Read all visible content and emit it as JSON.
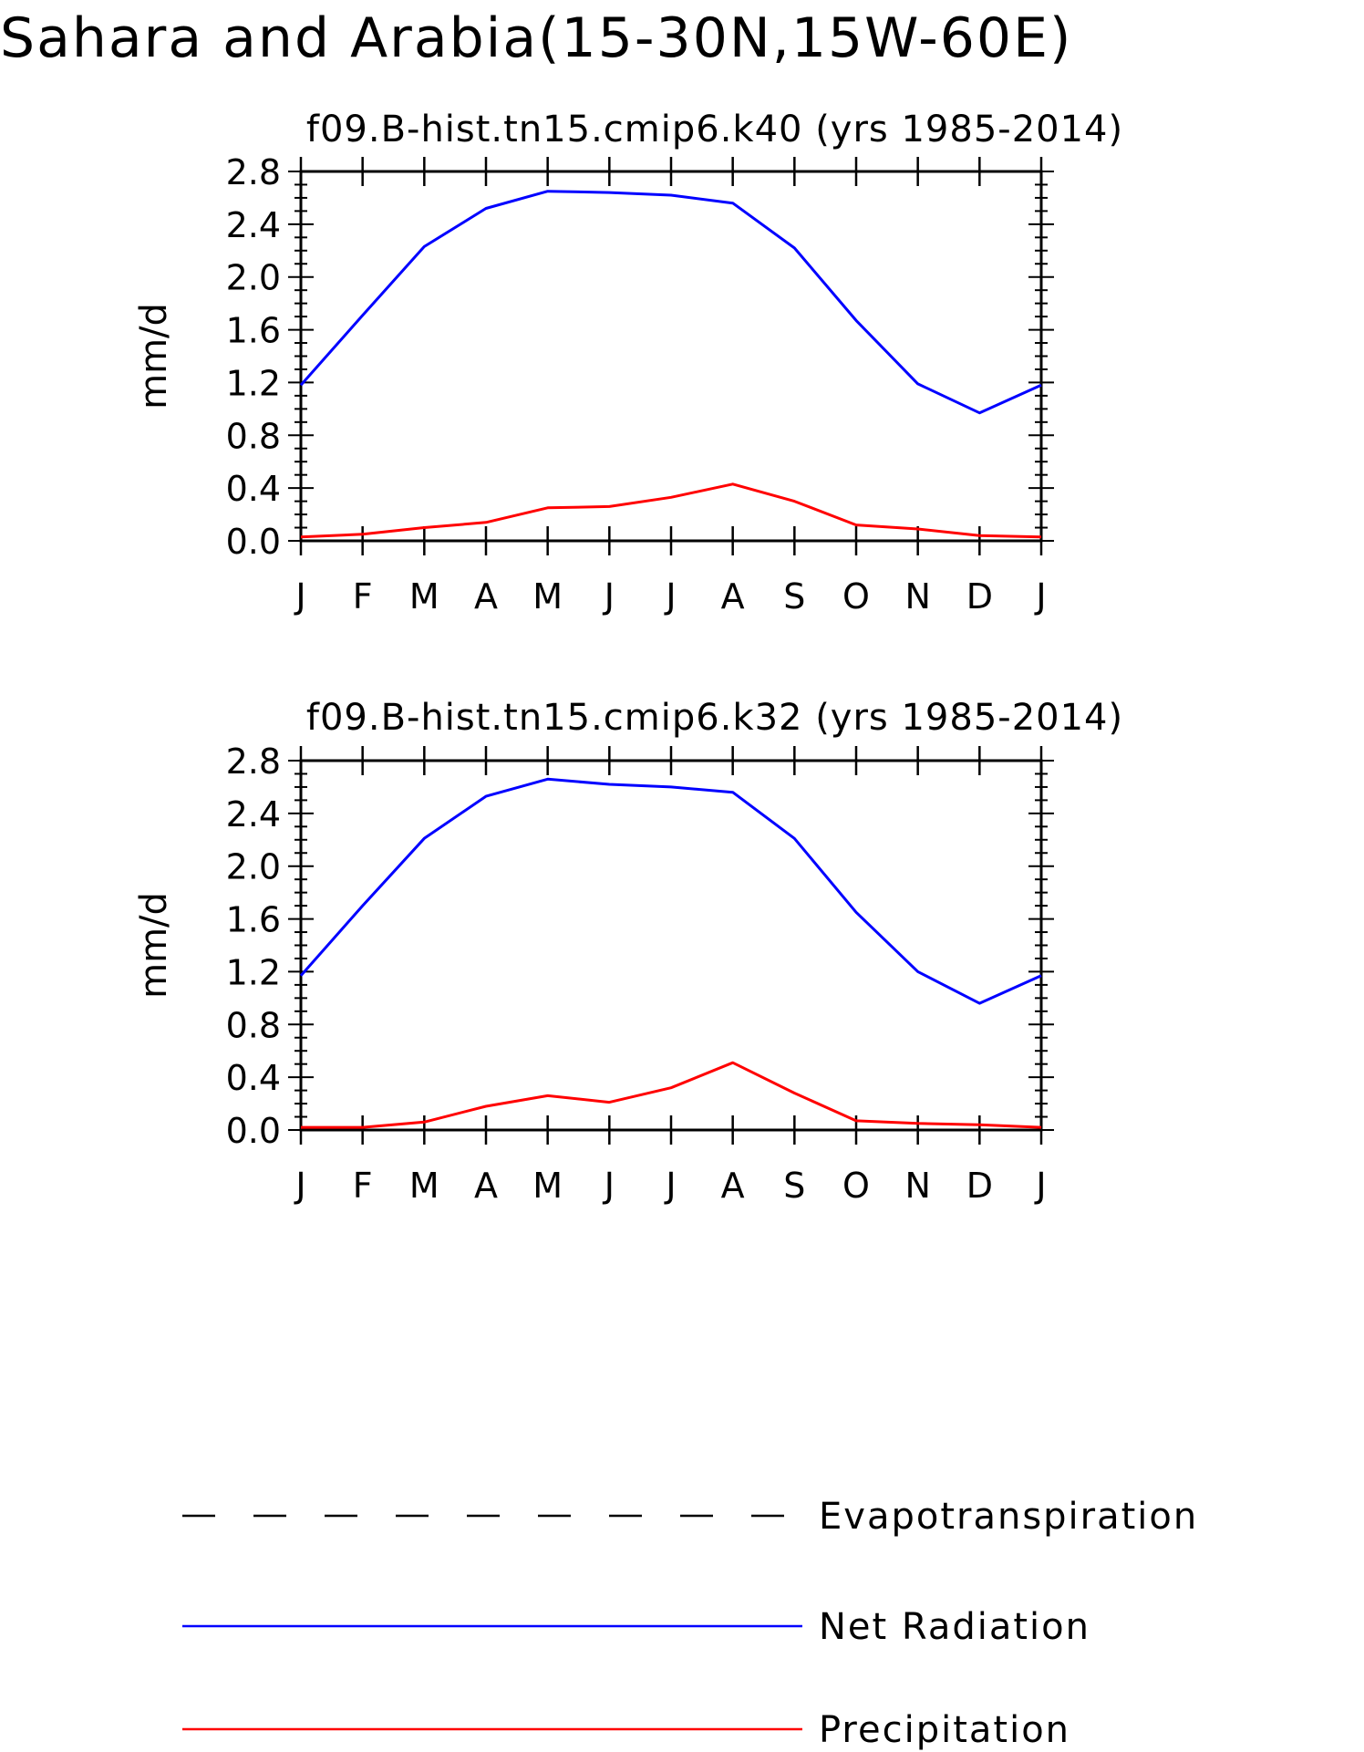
{
  "figure": {
    "title": "Sahara and Arabia(15-30N,15W-60E)"
  },
  "legend": {
    "items": [
      {
        "label": "Evapotranspiration",
        "color": "#000000",
        "style": "dashed"
      },
      {
        "label": "Net Radiation",
        "color": "#0000ff",
        "style": "solid"
      },
      {
        "label": "Precipitation",
        "color": "#ff0000",
        "style": "solid"
      }
    ]
  },
  "chart_data": [
    {
      "type": "line",
      "title": "f09.B-hist.tn15.cmip6.k40 (yrs 1985-2014)",
      "xlabel": "",
      "ylabel": "mm/d",
      "categories": [
        "J",
        "F",
        "M",
        "A",
        "M",
        "J",
        "J",
        "A",
        "S",
        "O",
        "N",
        "D",
        "J"
      ],
      "yticks": [
        "0.0",
        "0.4",
        "0.8",
        "1.2",
        "1.6",
        "2.0",
        "2.4",
        "2.8"
      ],
      "ylim": [
        0,
        2.8
      ],
      "grid": false,
      "series": [
        {
          "name": "Net Radiation",
          "color": "#0000ff",
          "values": [
            1.18,
            1.71,
            2.23,
            2.52,
            2.65,
            2.64,
            2.62,
            2.56,
            2.22,
            1.67,
            1.19,
            0.97,
            1.18
          ]
        },
        {
          "name": "Precipitation",
          "color": "#ff0000",
          "values": [
            0.03,
            0.05,
            0.1,
            0.14,
            0.25,
            0.26,
            0.33,
            0.43,
            0.3,
            0.12,
            0.09,
            0.04,
            0.03
          ]
        }
      ]
    },
    {
      "type": "line",
      "title": "f09.B-hist.tn15.cmip6.k32 (yrs 1985-2014)",
      "xlabel": "",
      "ylabel": "mm/d",
      "categories": [
        "J",
        "F",
        "M",
        "A",
        "M",
        "J",
        "J",
        "A",
        "S",
        "O",
        "N",
        "D",
        "J"
      ],
      "yticks": [
        "0.0",
        "0.4",
        "0.8",
        "1.2",
        "1.6",
        "2.0",
        "2.4",
        "2.8"
      ],
      "ylim": [
        0,
        2.8
      ],
      "grid": false,
      "series": [
        {
          "name": "Net Radiation",
          "color": "#0000ff",
          "values": [
            1.17,
            1.7,
            2.21,
            2.53,
            2.66,
            2.62,
            2.6,
            2.56,
            2.21,
            1.65,
            1.2,
            0.96,
            1.17
          ]
        },
        {
          "name": "Precipitation",
          "color": "#ff0000",
          "values": [
            0.02,
            0.02,
            0.06,
            0.18,
            0.26,
            0.21,
            0.32,
            0.51,
            0.28,
            0.07,
            0.05,
            0.04,
            0.02
          ]
        }
      ]
    }
  ]
}
